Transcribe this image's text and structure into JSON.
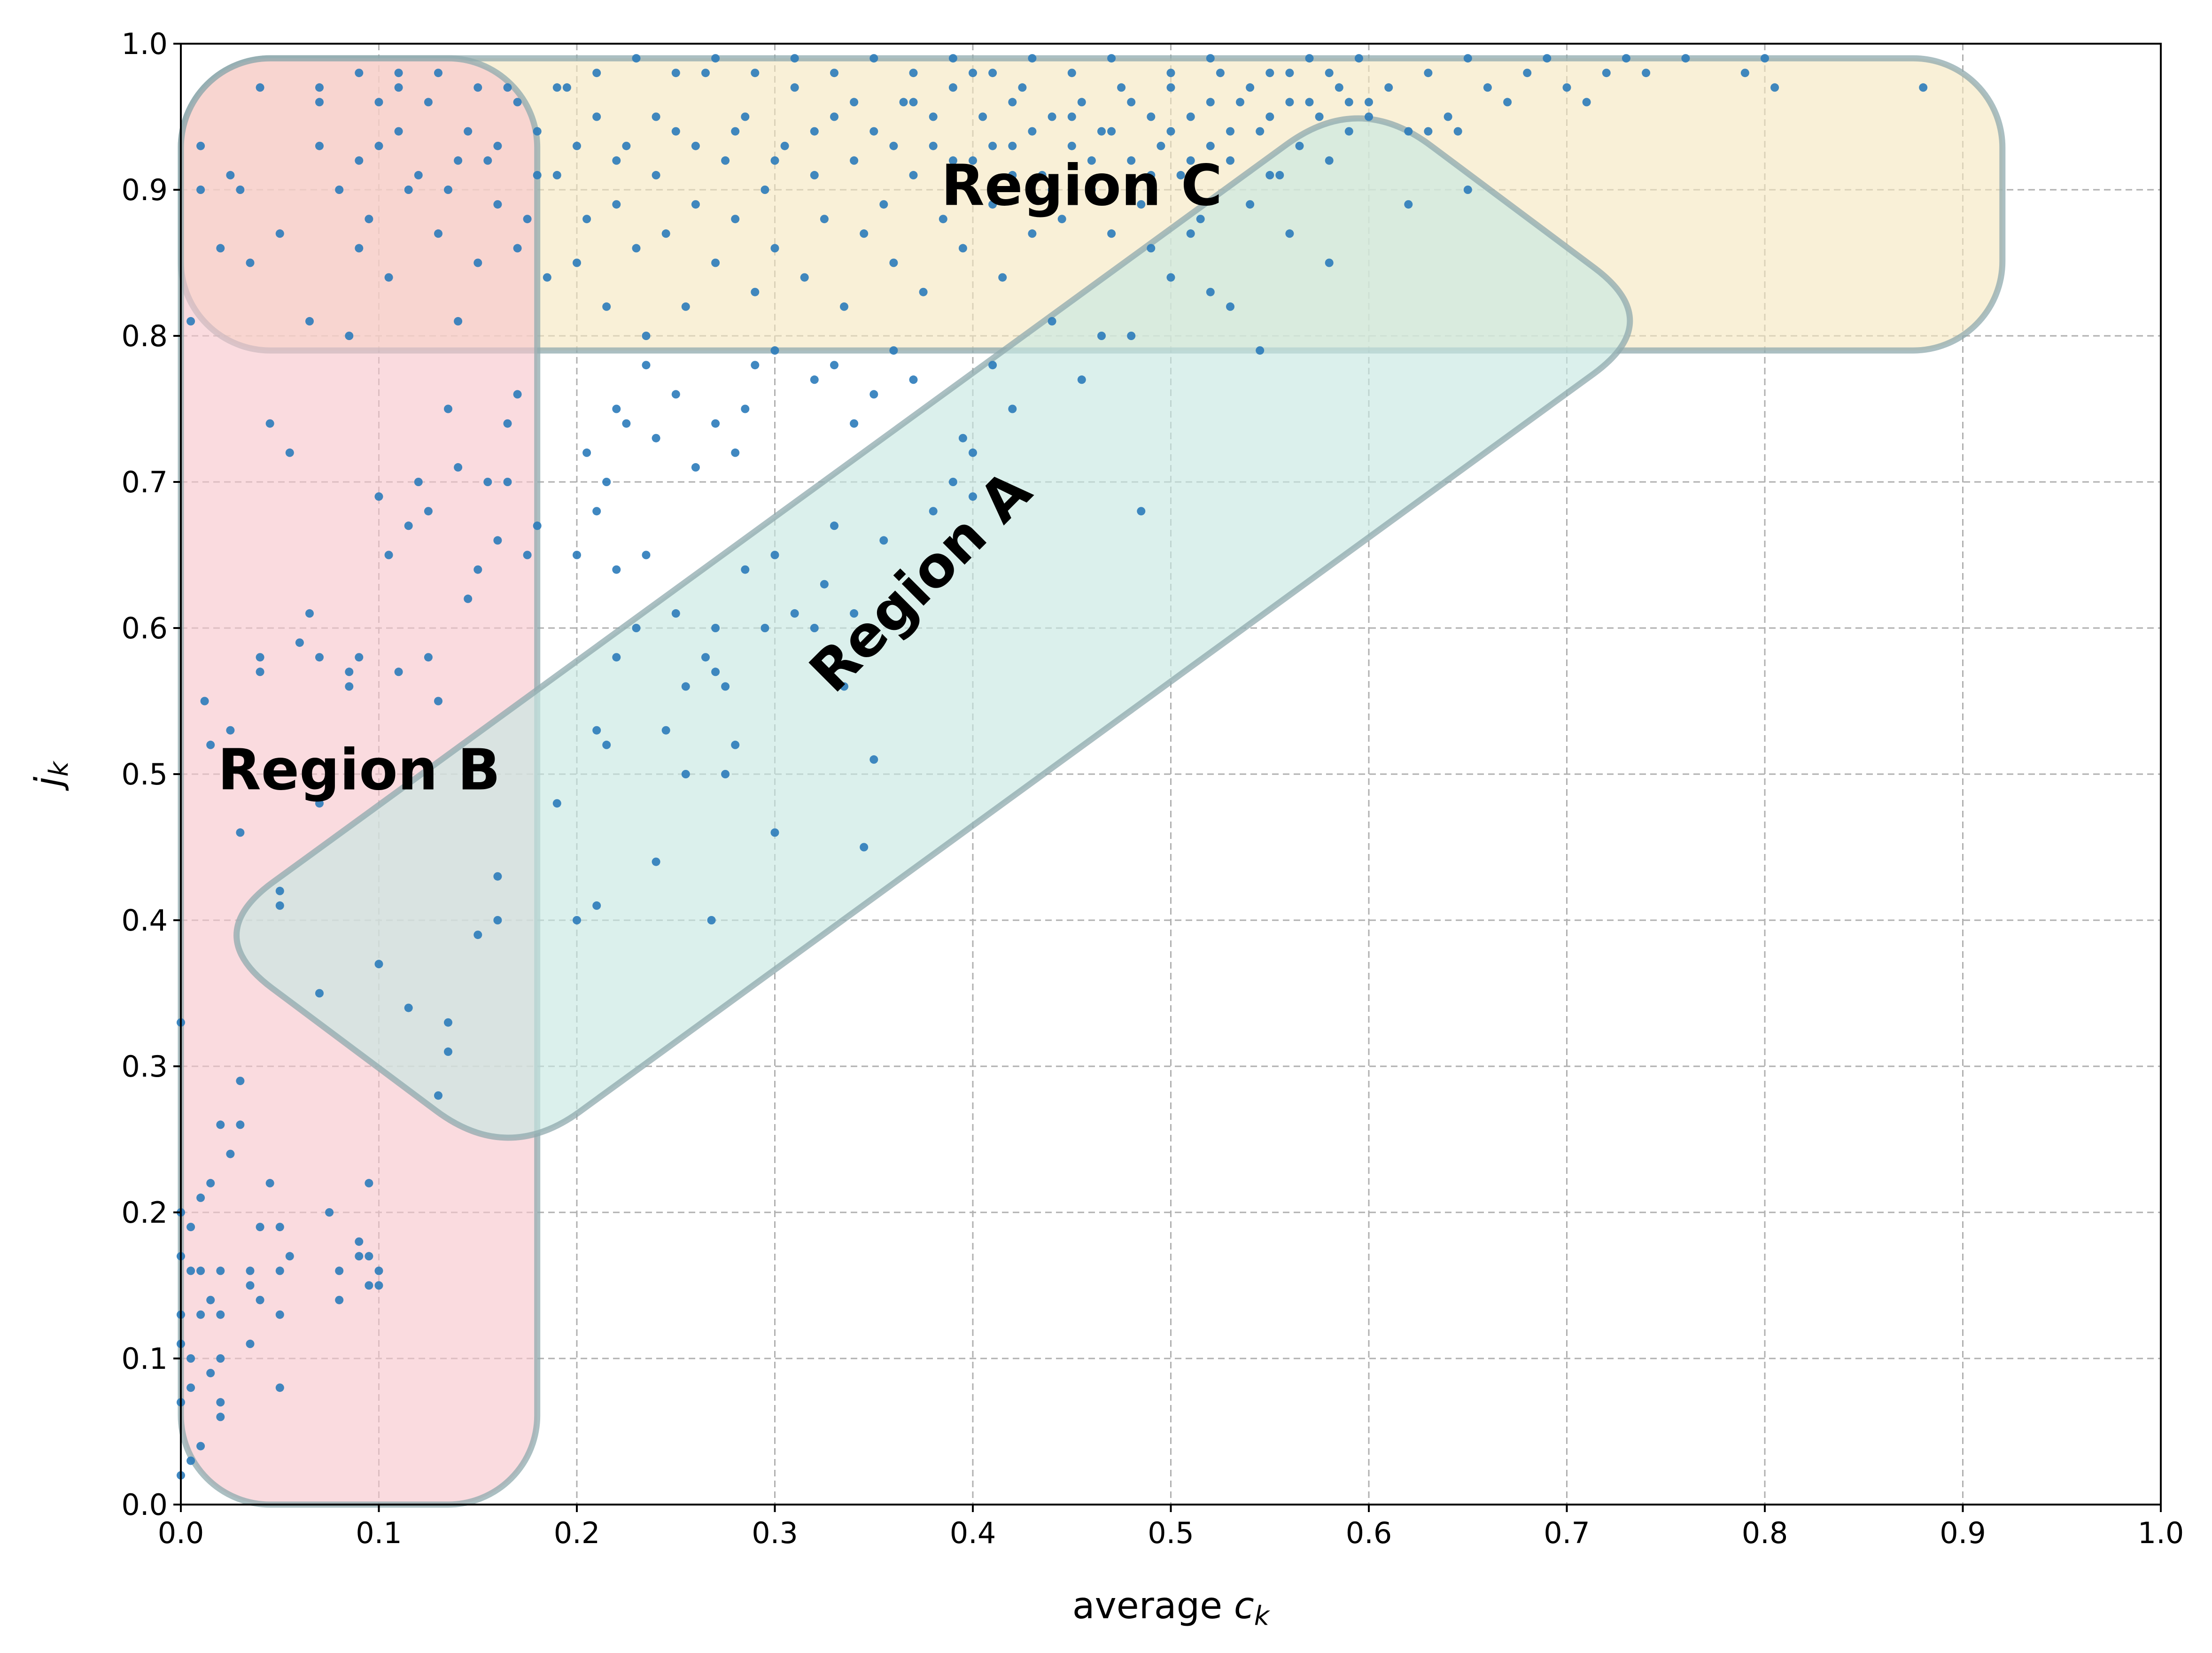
{
  "chart_data": {
    "type": "scatter",
    "xlabel_base": "average ",
    "xlabel_var": "c",
    "xlabel_sub": "k",
    "ylabel_var": "j",
    "ylabel_sub": "k",
    "xlim": [
      0.0,
      1.0
    ],
    "ylim": [
      0.0,
      1.0
    ],
    "xticks": [
      0.0,
      0.1,
      0.2,
      0.3,
      0.4,
      0.5,
      0.6,
      0.7,
      0.8,
      0.9,
      1.0
    ],
    "yticks": [
      0.0,
      0.1,
      0.2,
      0.3,
      0.4,
      0.5,
      0.6,
      0.7,
      0.8,
      0.9,
      1.0
    ],
    "xtick_labels": [
      "0.0",
      "0.1",
      "0.2",
      "0.3",
      "0.4",
      "0.5",
      "0.6",
      "0.7",
      "0.8",
      "0.9",
      "1.0"
    ],
    "ytick_labels": [
      "0.0",
      "0.1",
      "0.2",
      "0.3",
      "0.4",
      "0.5",
      "0.6",
      "0.7",
      "0.8",
      "0.9",
      "1.0"
    ],
    "grid": true,
    "point_color": "#2b7bba",
    "regions": [
      {
        "label": "Region C",
        "fill": "#f5e6bf",
        "stroke": "#8fa9ad",
        "x_range": [
          0.0,
          0.92
        ],
        "y_range": [
          0.79,
          0.99
        ],
        "label_at": [
          0.455,
          0.9
        ],
        "label_rotation": 0
      },
      {
        "label": "Region B",
        "fill": "#f7c5cc",
        "stroke": "#8fa9ad",
        "x_range": [
          0.0,
          0.18
        ],
        "y_range": [
          0.0,
          0.99
        ],
        "label_at": [
          0.09,
          0.5
        ],
        "label_rotation": 0
      },
      {
        "label": "Region A",
        "fill": "#c8e8e2",
        "stroke": "#8fa9ad",
        "polygon": [
          [
            0.165,
            0.233
          ],
          [
            0.01,
            0.39
          ],
          [
            0.595,
            0.967
          ],
          [
            0.75,
            0.81
          ]
        ],
        "label_at": [
          0.375,
          0.63
        ],
        "label_rotation": -45
      }
    ],
    "points": [
      [
        0.0,
        0.02
      ],
      [
        0.0,
        0.07
      ],
      [
        0.0,
        0.11
      ],
      [
        0.0,
        0.13
      ],
      [
        0.0,
        0.17
      ],
      [
        0.0,
        0.2
      ],
      [
        0.0,
        0.33
      ],
      [
        0.005,
        0.03
      ],
      [
        0.005,
        0.08
      ],
      [
        0.005,
        0.1
      ],
      [
        0.005,
        0.16
      ],
      [
        0.005,
        0.19
      ],
      [
        0.01,
        0.04
      ],
      [
        0.01,
        0.13
      ],
      [
        0.01,
        0.16
      ],
      [
        0.01,
        0.21
      ],
      [
        0.012,
        0.55
      ],
      [
        0.015,
        0.52
      ],
      [
        0.015,
        0.09
      ],
      [
        0.015,
        0.14
      ],
      [
        0.015,
        0.22
      ],
      [
        0.02,
        0.06
      ],
      [
        0.02,
        0.07
      ],
      [
        0.02,
        0.1
      ],
      [
        0.02,
        0.13
      ],
      [
        0.02,
        0.16
      ],
      [
        0.02,
        0.26
      ],
      [
        0.025,
        0.24
      ],
      [
        0.025,
        0.53
      ],
      [
        0.03,
        0.29
      ],
      [
        0.03,
        0.46
      ],
      [
        0.03,
        0.26
      ],
      [
        0.035,
        0.15
      ],
      [
        0.035,
        0.11
      ],
      [
        0.035,
        0.16
      ],
      [
        0.04,
        0.14
      ],
      [
        0.04,
        0.19
      ],
      [
        0.04,
        0.57
      ],
      [
        0.04,
        0.58
      ],
      [
        0.045,
        0.74
      ],
      [
        0.045,
        0.22
      ],
      [
        0.05,
        0.08
      ],
      [
        0.05,
        0.13
      ],
      [
        0.05,
        0.42
      ],
      [
        0.05,
        0.41
      ],
      [
        0.05,
        0.19
      ],
      [
        0.05,
        0.16
      ],
      [
        0.055,
        0.72
      ],
      [
        0.055,
        0.17
      ],
      [
        0.06,
        0.59
      ],
      [
        0.065,
        0.61
      ],
      [
        0.07,
        0.58
      ],
      [
        0.07,
        0.48
      ],
      [
        0.07,
        0.35
      ],
      [
        0.075,
        0.2
      ],
      [
        0.08,
        0.14
      ],
      [
        0.08,
        0.16
      ],
      [
        0.085,
        0.57
      ],
      [
        0.085,
        0.56
      ],
      [
        0.09,
        0.58
      ],
      [
        0.09,
        0.18
      ],
      [
        0.09,
        0.17
      ],
      [
        0.095,
        0.22
      ],
      [
        0.095,
        0.15
      ],
      [
        0.095,
        0.17
      ],
      [
        0.1,
        0.37
      ],
      [
        0.1,
        0.16
      ],
      [
        0.1,
        0.15
      ],
      [
        0.1,
        0.69
      ],
      [
        0.105,
        0.65
      ],
      [
        0.11,
        0.57
      ],
      [
        0.115,
        0.67
      ],
      [
        0.115,
        0.34
      ],
      [
        0.12,
        0.7
      ],
      [
        0.125,
        0.58
      ],
      [
        0.125,
        0.68
      ],
      [
        0.13,
        0.28
      ],
      [
        0.13,
        0.55
      ],
      [
        0.135,
        0.75
      ],
      [
        0.135,
        0.33
      ],
      [
        0.135,
        0.31
      ],
      [
        0.14,
        0.71
      ],
      [
        0.145,
        0.62
      ],
      [
        0.15,
        0.39
      ],
      [
        0.15,
        0.64
      ],
      [
        0.155,
        0.7
      ],
      [
        0.16,
        0.4
      ],
      [
        0.16,
        0.43
      ],
      [
        0.16,
        0.66
      ],
      [
        0.165,
        0.74
      ],
      [
        0.165,
        0.7
      ],
      [
        0.17,
        0.76
      ],
      [
        0.175,
        0.65
      ],
      [
        0.18,
        0.67
      ],
      [
        0.19,
        0.48
      ],
      [
        0.2,
        0.65
      ],
      [
        0.2,
        0.4
      ],
      [
        0.21,
        0.41
      ],
      [
        0.21,
        0.53
      ],
      [
        0.215,
        0.52
      ],
      [
        0.22,
        0.58
      ],
      [
        0.22,
        0.64
      ],
      [
        0.23,
        0.6
      ],
      [
        0.245,
        0.53
      ],
      [
        0.25,
        0.61
      ],
      [
        0.255,
        0.5
      ],
      [
        0.255,
        0.56
      ],
      [
        0.265,
        0.58
      ],
      [
        0.27,
        0.6
      ],
      [
        0.27,
        0.57
      ],
      [
        0.275,
        0.5
      ],
      [
        0.275,
        0.56
      ],
      [
        0.28,
        0.52
      ],
      [
        0.285,
        0.64
      ],
      [
        0.295,
        0.6
      ],
      [
        0.3,
        0.65
      ],
      [
        0.3,
        0.46
      ],
      [
        0.31,
        0.61
      ],
      [
        0.32,
        0.6
      ],
      [
        0.325,
        0.63
      ],
      [
        0.33,
        0.67
      ],
      [
        0.335,
        0.56
      ],
      [
        0.34,
        0.61
      ],
      [
        0.345,
        0.45
      ],
      [
        0.35,
        0.51
      ],
      [
        0.355,
        0.66
      ],
      [
        0.24,
        0.44
      ],
      [
        0.268,
        0.4
      ],
      [
        0.005,
        0.81
      ],
      [
        0.01,
        0.9
      ],
      [
        0.01,
        0.93
      ],
      [
        0.02,
        0.86
      ],
      [
        0.025,
        0.91
      ],
      [
        0.03,
        0.9
      ],
      [
        0.035,
        0.85
      ],
      [
        0.04,
        0.97
      ],
      [
        0.05,
        0.87
      ],
      [
        0.065,
        0.81
      ],
      [
        0.07,
        0.93
      ],
      [
        0.07,
        0.96
      ],
      [
        0.08,
        0.9
      ],
      [
        0.085,
        0.8
      ],
      [
        0.09,
        0.92
      ],
      [
        0.09,
        0.86
      ],
      [
        0.095,
        0.88
      ],
      [
        0.1,
        0.93
      ],
      [
        0.1,
        0.96
      ],
      [
        0.105,
        0.84
      ],
      [
        0.11,
        0.94
      ],
      [
        0.11,
        0.98
      ],
      [
        0.115,
        0.9
      ],
      [
        0.12,
        0.91
      ],
      [
        0.125,
        0.96
      ],
      [
        0.13,
        0.87
      ],
      [
        0.135,
        0.9
      ],
      [
        0.14,
        0.81
      ],
      [
        0.145,
        0.94
      ],
      [
        0.15,
        0.85
      ],
      [
        0.155,
        0.92
      ],
      [
        0.16,
        0.89
      ],
      [
        0.165,
        0.97
      ],
      [
        0.17,
        0.86
      ],
      [
        0.175,
        0.88
      ],
      [
        0.18,
        0.94
      ],
      [
        0.185,
        0.84
      ],
      [
        0.19,
        0.91
      ],
      [
        0.195,
        0.97
      ],
      [
        0.2,
        0.85
      ],
      [
        0.205,
        0.88
      ],
      [
        0.21,
        0.95
      ],
      [
        0.215,
        0.82
      ],
      [
        0.22,
        0.89
      ],
      [
        0.225,
        0.93
      ],
      [
        0.23,
        0.86
      ],
      [
        0.235,
        0.8
      ],
      [
        0.24,
        0.91
      ],
      [
        0.245,
        0.87
      ],
      [
        0.25,
        0.94
      ],
      [
        0.255,
        0.82
      ],
      [
        0.26,
        0.89
      ],
      [
        0.265,
        0.98
      ],
      [
        0.27,
        0.85
      ],
      [
        0.275,
        0.92
      ],
      [
        0.28,
        0.88
      ],
      [
        0.285,
        0.95
      ],
      [
        0.29,
        0.83
      ],
      [
        0.295,
        0.9
      ],
      [
        0.3,
        0.86
      ],
      [
        0.305,
        0.93
      ],
      [
        0.31,
        0.97
      ],
      [
        0.315,
        0.84
      ],
      [
        0.32,
        0.91
      ],
      [
        0.325,
        0.88
      ],
      [
        0.33,
        0.95
      ],
      [
        0.335,
        0.82
      ],
      [
        0.34,
        0.92
      ],
      [
        0.345,
        0.87
      ],
      [
        0.35,
        0.94
      ],
      [
        0.355,
        0.89
      ],
      [
        0.36,
        0.85
      ],
      [
        0.365,
        0.96
      ],
      [
        0.37,
        0.91
      ],
      [
        0.375,
        0.83
      ],
      [
        0.38,
        0.93
      ],
      [
        0.385,
        0.88
      ],
      [
        0.39,
        0.97
      ],
      [
        0.395,
        0.86
      ],
      [
        0.4,
        0.92
      ],
      [
        0.405,
        0.95
      ],
      [
        0.41,
        0.89
      ],
      [
        0.415,
        0.84
      ],
      [
        0.42,
        0.93
      ],
      [
        0.425,
        0.97
      ],
      [
        0.43,
        0.87
      ],
      [
        0.435,
        0.91
      ],
      [
        0.44,
        0.95
      ],
      [
        0.445,
        0.88
      ],
      [
        0.45,
        0.93
      ],
      [
        0.455,
        0.96
      ],
      [
        0.46,
        0.9
      ],
      [
        0.465,
        0.94
      ],
      [
        0.47,
        0.87
      ],
      [
        0.475,
        0.97
      ],
      [
        0.48,
        0.92
      ],
      [
        0.485,
        0.89
      ],
      [
        0.49,
        0.95
      ],
      [
        0.495,
        0.93
      ],
      [
        0.5,
        0.97
      ],
      [
        0.505,
        0.91
      ],
      [
        0.51,
        0.95
      ],
      [
        0.515,
        0.88
      ],
      [
        0.52,
        0.93
      ],
      [
        0.525,
        0.98
      ],
      [
        0.53,
        0.92
      ],
      [
        0.535,
        0.96
      ],
      [
        0.54,
        0.89
      ],
      [
        0.545,
        0.94
      ],
      [
        0.55,
        0.98
      ],
      [
        0.555,
        0.91
      ],
      [
        0.56,
        0.96
      ],
      [
        0.565,
        0.93
      ],
      [
        0.57,
        0.99
      ],
      [
        0.575,
        0.95
      ],
      [
        0.58,
        0.92
      ],
      [
        0.585,
        0.97
      ],
      [
        0.59,
        0.94
      ],
      [
        0.595,
        0.99
      ],
      [
        0.6,
        0.96
      ],
      [
        0.61,
        0.97
      ],
      [
        0.62,
        0.94
      ],
      [
        0.63,
        0.98
      ],
      [
        0.64,
        0.95
      ],
      [
        0.65,
        0.99
      ],
      [
        0.66,
        0.97
      ],
      [
        0.67,
        0.96
      ],
      [
        0.68,
        0.98
      ],
      [
        0.69,
        0.99
      ],
      [
        0.7,
        0.97
      ],
      [
        0.71,
        0.96
      ],
      [
        0.72,
        0.98
      ],
      [
        0.73,
        0.99
      ],
      [
        0.74,
        0.98
      ],
      [
        0.76,
        0.99
      ],
      [
        0.79,
        0.98
      ],
      [
        0.8,
        0.99
      ],
      [
        0.805,
        0.97
      ],
      [
        0.88,
        0.97
      ],
      [
        0.62,
        0.89
      ],
      [
        0.55,
        0.91
      ],
      [
        0.58,
        0.85
      ],
      [
        0.52,
        0.83
      ],
      [
        0.545,
        0.79
      ],
      [
        0.465,
        0.8
      ],
      [
        0.48,
        0.8
      ],
      [
        0.455,
        0.77
      ],
      [
        0.44,
        0.81
      ],
      [
        0.42,
        0.75
      ],
      [
        0.41,
        0.78
      ],
      [
        0.4,
        0.72
      ],
      [
        0.39,
        0.7
      ],
      [
        0.38,
        0.68
      ],
      [
        0.37,
        0.77
      ],
      [
        0.36,
        0.79
      ],
      [
        0.35,
        0.76
      ],
      [
        0.34,
        0.74
      ],
      [
        0.33,
        0.78
      ],
      [
        0.32,
        0.77
      ],
      [
        0.3,
        0.79
      ],
      [
        0.29,
        0.78
      ],
      [
        0.285,
        0.75
      ],
      [
        0.28,
        0.72
      ],
      [
        0.27,
        0.74
      ],
      [
        0.26,
        0.71
      ],
      [
        0.25,
        0.76
      ],
      [
        0.24,
        0.73
      ],
      [
        0.235,
        0.78
      ],
      [
        0.225,
        0.74
      ],
      [
        0.215,
        0.7
      ],
      [
        0.21,
        0.68
      ],
      [
        0.205,
        0.72
      ],
      [
        0.22,
        0.75
      ],
      [
        0.235,
        0.65
      ],
      [
        0.4,
        0.69
      ],
      [
        0.395,
        0.73
      ],
      [
        0.485,
        0.68
      ],
      [
        0.49,
        0.86
      ],
      [
        0.5,
        0.84
      ],
      [
        0.51,
        0.87
      ],
      [
        0.53,
        0.82
      ],
      [
        0.56,
        0.87
      ],
      [
        0.6,
        0.95
      ],
      [
        0.63,
        0.94
      ],
      [
        0.645,
        0.94
      ],
      [
        0.65,
        0.9
      ],
      [
        0.5,
        0.98
      ],
      [
        0.52,
        0.99
      ],
      [
        0.47,
        0.99
      ],
      [
        0.45,
        0.98
      ],
      [
        0.43,
        0.99
      ],
      [
        0.41,
        0.98
      ],
      [
        0.39,
        0.99
      ],
      [
        0.37,
        0.98
      ],
      [
        0.35,
        0.99
      ],
      [
        0.33,
        0.98
      ],
      [
        0.31,
        0.99
      ],
      [
        0.29,
        0.98
      ],
      [
        0.27,
        0.99
      ],
      [
        0.25,
        0.98
      ],
      [
        0.23,
        0.99
      ],
      [
        0.21,
        0.98
      ],
      [
        0.19,
        0.97
      ],
      [
        0.17,
        0.96
      ],
      [
        0.15,
        0.97
      ],
      [
        0.13,
        0.98
      ],
      [
        0.11,
        0.97
      ],
      [
        0.09,
        0.98
      ],
      [
        0.07,
        0.97
      ],
      [
        0.42,
        0.91
      ],
      [
        0.43,
        0.94
      ],
      [
        0.44,
        0.9
      ],
      [
        0.45,
        0.95
      ],
      [
        0.46,
        0.92
      ],
      [
        0.47,
        0.94
      ],
      [
        0.48,
        0.96
      ],
      [
        0.49,
        0.91
      ],
      [
        0.5,
        0.94
      ],
      [
        0.51,
        0.92
      ],
      [
        0.52,
        0.96
      ],
      [
        0.53,
        0.94
      ],
      [
        0.54,
        0.97
      ],
      [
        0.55,
        0.95
      ],
      [
        0.56,
        0.98
      ],
      [
        0.57,
        0.96
      ],
      [
        0.58,
        0.98
      ],
      [
        0.59,
        0.96
      ],
      [
        0.38,
        0.95
      ],
      [
        0.39,
        0.92
      ],
      [
        0.4,
        0.98
      ],
      [
        0.41,
        0.93
      ],
      [
        0.42,
        0.96
      ],
      [
        0.36,
        0.93
      ],
      [
        0.37,
        0.96
      ],
      [
        0.34,
        0.96
      ],
      [
        0.32,
        0.94
      ],
      [
        0.3,
        0.92
      ],
      [
        0.28,
        0.94
      ],
      [
        0.26,
        0.93
      ],
      [
        0.24,
        0.95
      ],
      [
        0.22,
        0.92
      ],
      [
        0.2,
        0.93
      ],
      [
        0.18,
        0.91
      ],
      [
        0.16,
        0.93
      ],
      [
        0.14,
        0.92
      ]
    ]
  }
}
